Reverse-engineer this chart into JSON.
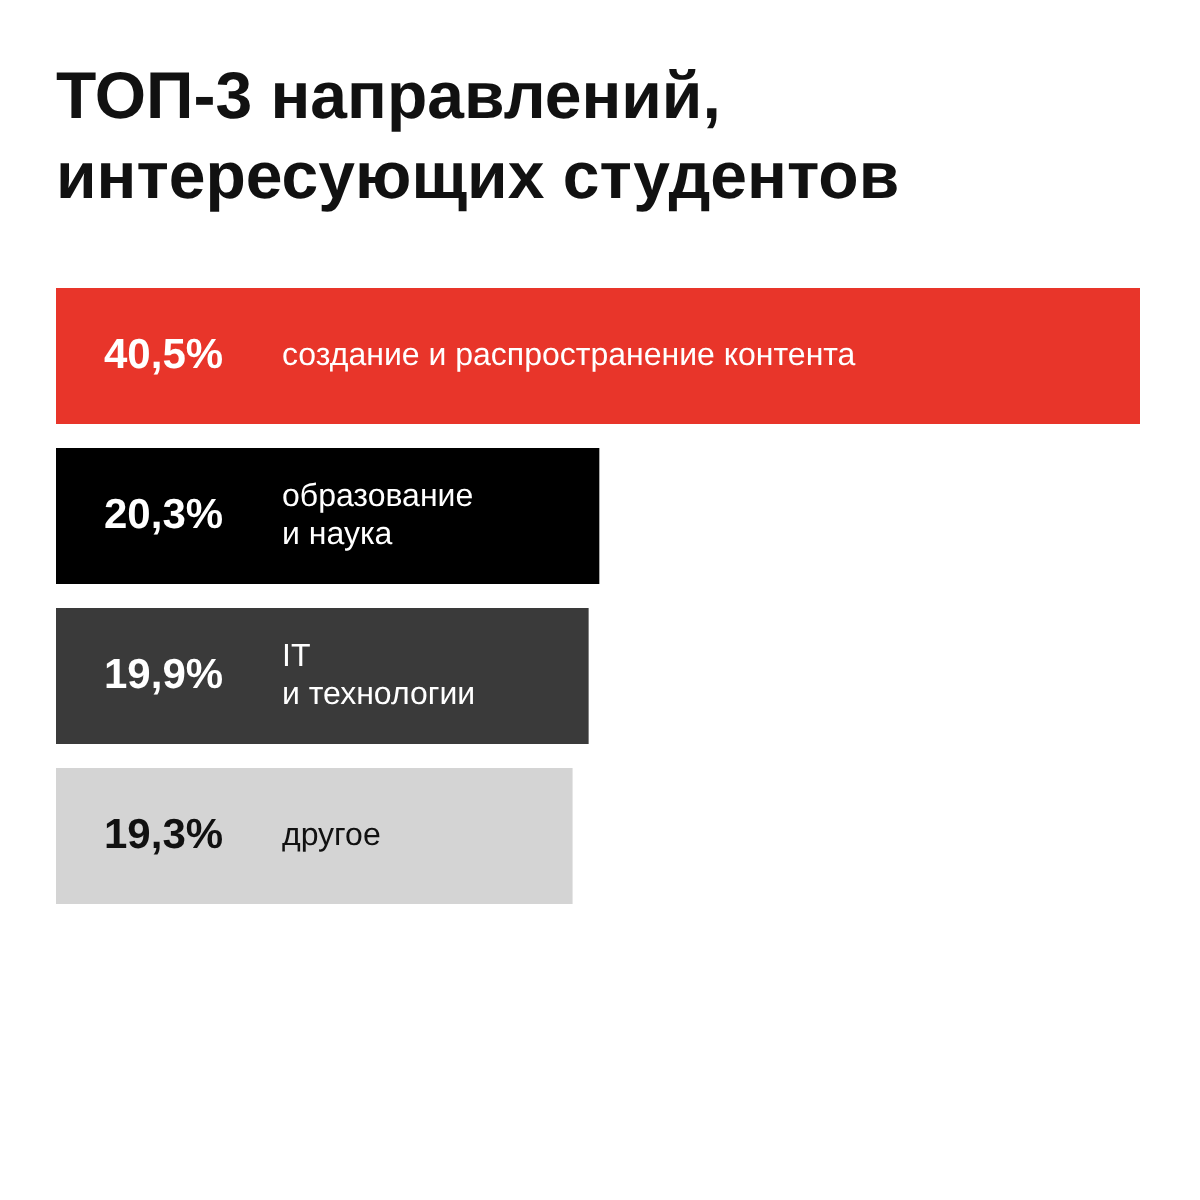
{
  "chart_data": {
    "type": "bar",
    "orientation": "horizontal",
    "title": "ТОП-3 направлений,\nинтересующих студентов",
    "categories": [
      "создание и распространение контента",
      "образование\nи наука",
      "IT\nи технологии",
      "другое"
    ],
    "values": [
      40.5,
      20.3,
      19.9,
      19.3
    ],
    "colors": [
      "#e8352a",
      "#000000",
      "#3a3a3a",
      "#d4d4d4"
    ],
    "value_labels": [
      "40,5%",
      "20,3%",
      "19,9%",
      "19,3%"
    ],
    "xlim": [
      0,
      40.5
    ],
    "legend": false,
    "tick_labels": false
  }
}
